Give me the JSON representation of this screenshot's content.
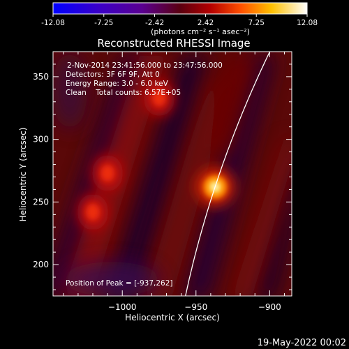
{
  "colorbar": {
    "tick_labels": [
      "-12.08",
      "-7.25",
      "-2.42",
      "2.42",
      "7.25",
      "12.08"
    ],
    "range": [
      -12.08,
      12.08
    ],
    "unit_label": "(photons cm⁻² s⁻¹ asec⁻²)"
  },
  "chart_data": {
    "type": "heatmap",
    "title": "Reconstructed RHESSI Image",
    "xlabel": "Heliocentric X (arcsec)",
    "ylabel": "Heliocentric Y (arcsec)",
    "xlim": [
      -1047,
      -885
    ],
    "ylim": [
      175,
      370
    ],
    "xticks": [
      -1000,
      -950,
      -900
    ],
    "yticks": [
      200,
      250,
      300,
      350
    ],
    "xtick_labels": [
      "−1000",
      "−950",
      "−900"
    ],
    "ytick_labels": [
      "200",
      "250",
      "300",
      "350"
    ],
    "colormap": "hot (black-blue-purple-red-yellow-white)",
    "vmin": -12.08,
    "vmax": 12.08,
    "info_lines": [
      "2-Nov-2014 23:41:56.000 to 23:47:56.000",
      "Detectors: 3F 6F 9F, Att 0",
      "Energy Range: 3.0 - 6.0 keV",
      "Clean    Total counts: 6.57E+05"
    ],
    "peak_label": "Position of Peak = [-937,262]",
    "peak": {
      "x": -937,
      "y": 262,
      "value": 12.08
    },
    "secondary_sources": [
      {
        "x": -1010,
        "y": 273
      },
      {
        "x": -1020,
        "y": 242
      },
      {
        "x": -975,
        "y": 333
      }
    ],
    "limb": {
      "description": "solar limb arc"
    }
  },
  "footer": {
    "date": "19-May-2022 00:02"
  }
}
